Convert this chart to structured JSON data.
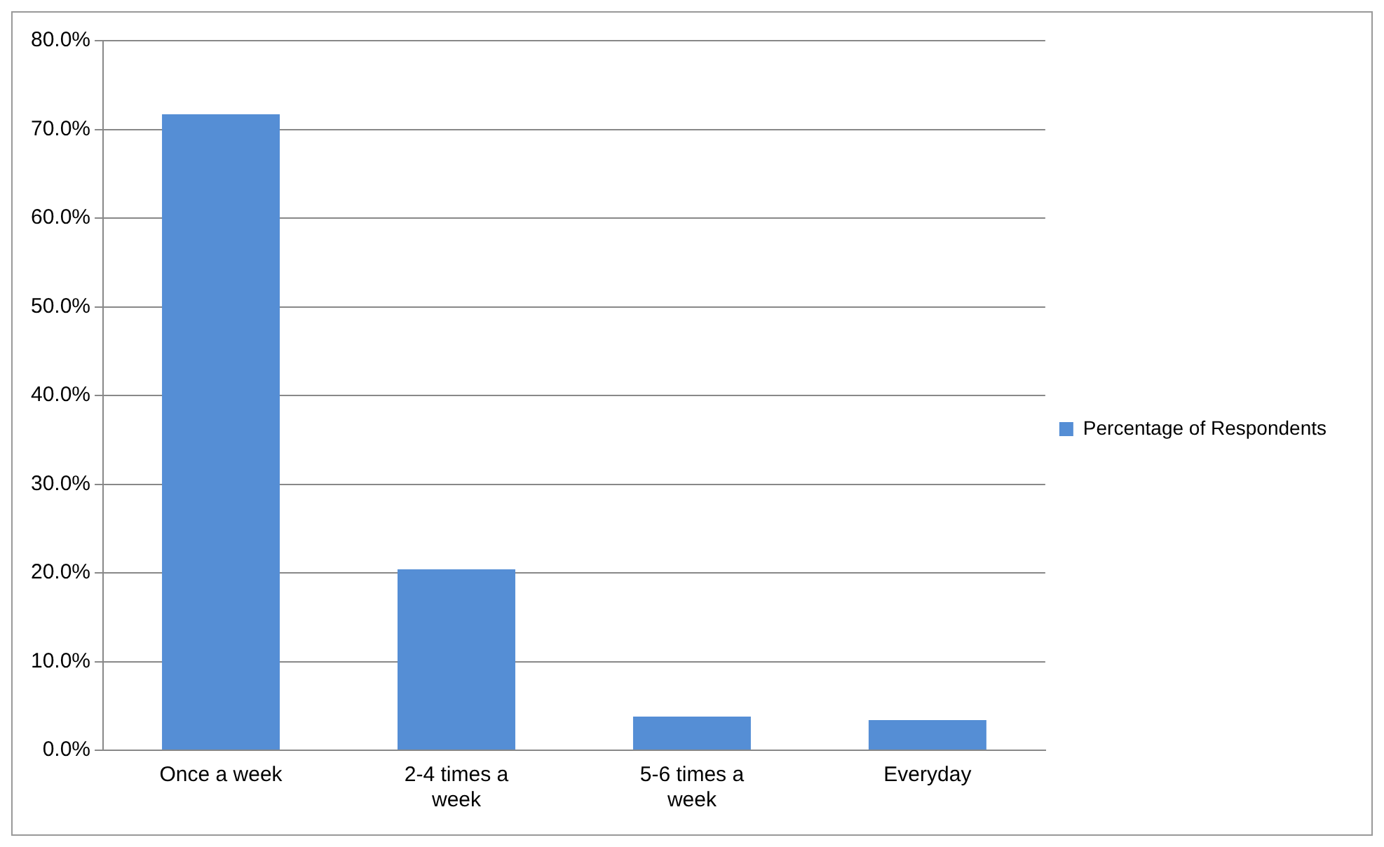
{
  "chart_data": {
    "type": "bar",
    "categories": [
      "Once a week",
      "2-4 times a week",
      "5-6 times a week",
      "Everyday"
    ],
    "series": [
      {
        "name": "Percentage of Respondents",
        "color": "#558ed5",
        "values": [
          71.7,
          20.4,
          3.8,
          3.4
        ]
      }
    ],
    "ylim": [
      0,
      80
    ],
    "yticks": [
      {
        "value": 0,
        "label": "0.0%"
      },
      {
        "value": 10,
        "label": "10.0%"
      },
      {
        "value": 20,
        "label": "20.0%"
      },
      {
        "value": 30,
        "label": "30.0%"
      },
      {
        "value": 40,
        "label": "40.0%"
      },
      {
        "value": 50,
        "label": "50.0%"
      },
      {
        "value": 60,
        "label": "60.0%"
      },
      {
        "value": 70,
        "label": "70.0%"
      },
      {
        "value": 80,
        "label": "80.0%"
      }
    ],
    "grid": "y",
    "legend": "right"
  }
}
